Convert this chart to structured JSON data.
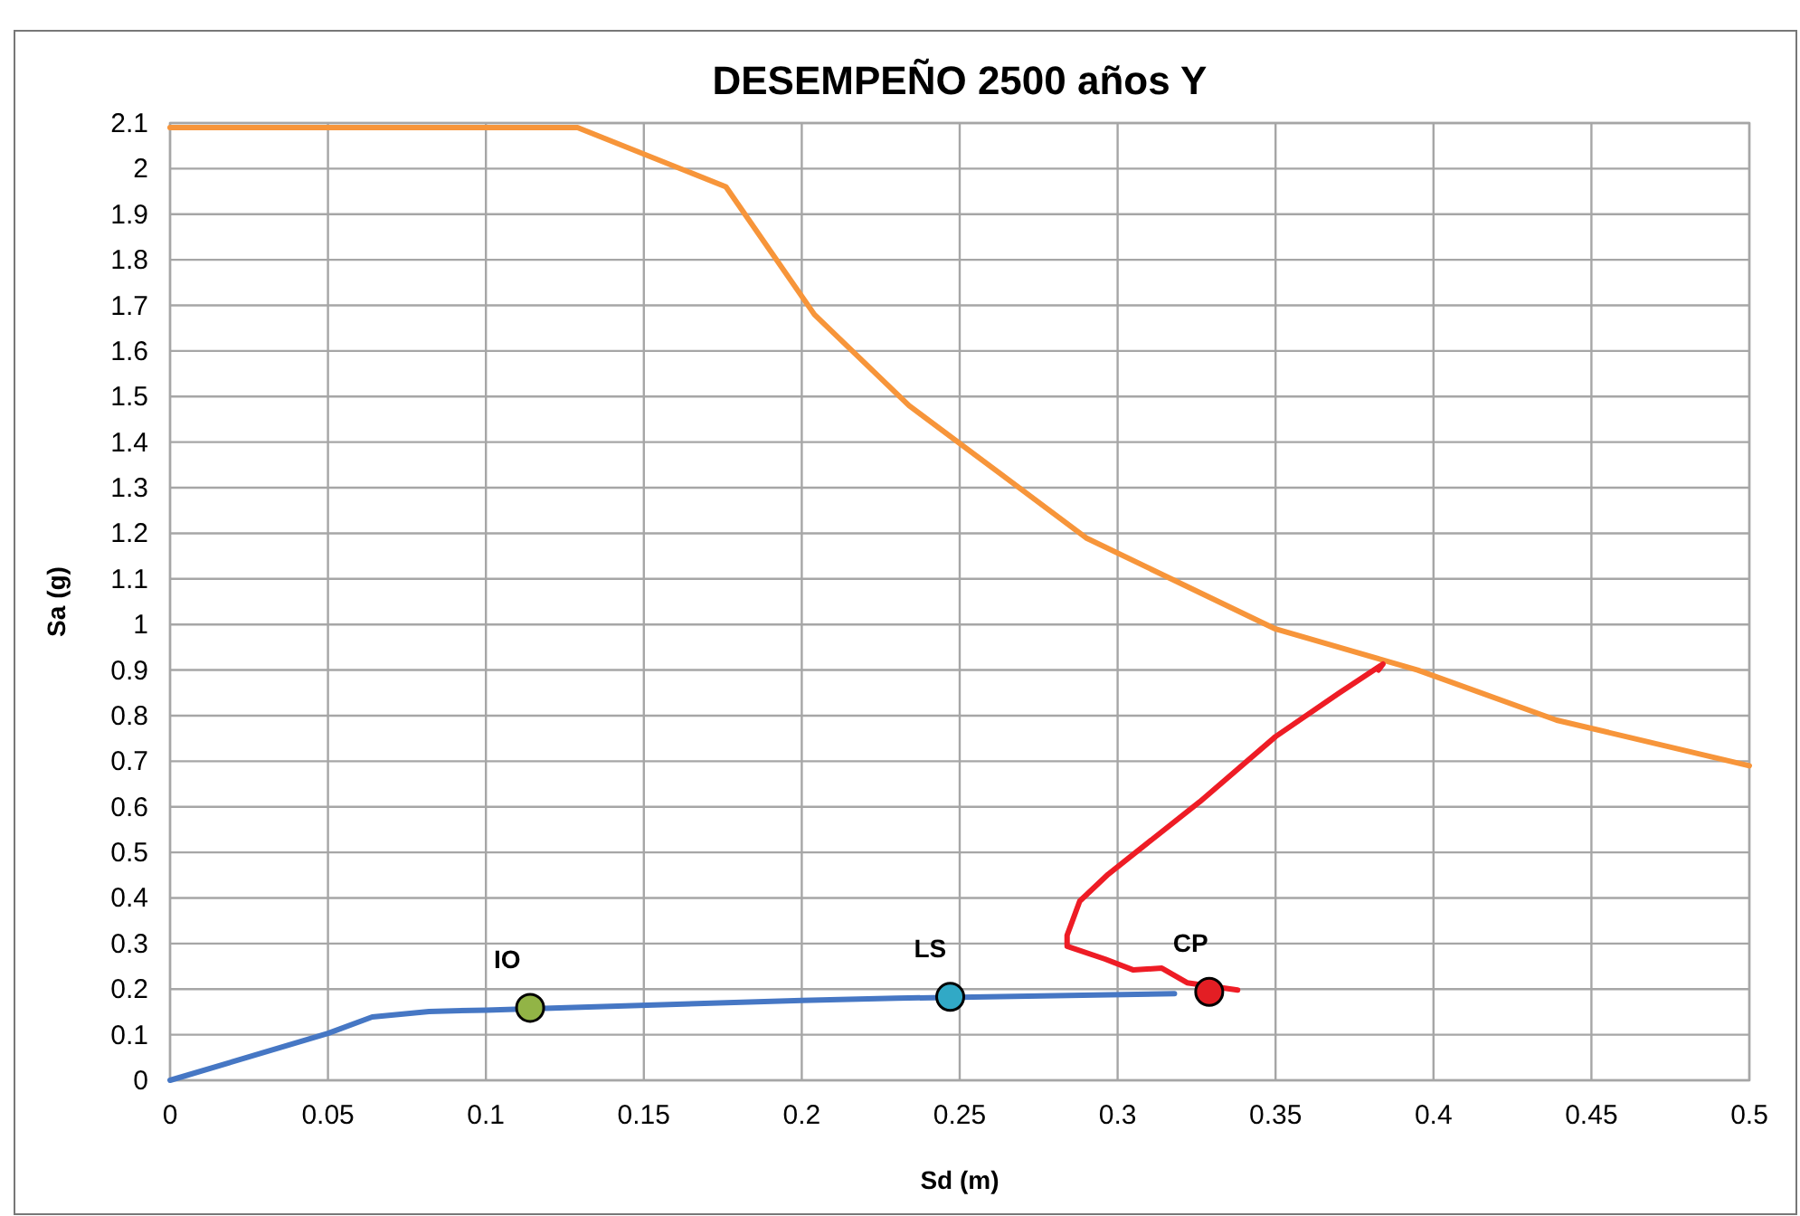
{
  "chart_data": {
    "type": "line",
    "title": "DESEMPEÑO 2500 años Y",
    "xlabel": "Sd (m)",
    "ylabel": "Sa (g)",
    "xlim": [
      0,
      0.5
    ],
    "xticks": [
      0,
      0.05,
      0.1,
      0.15,
      0.2,
      0.25,
      0.3,
      0.35,
      0.4,
      0.45,
      0.5
    ],
    "ylim": [
      0,
      2.1
    ],
    "yticks": [
      0,
      0.1,
      0.2,
      0.3,
      0.4,
      0.5,
      0.6,
      0.7,
      0.8,
      0.9,
      1,
      1.1,
      1.2,
      1.3,
      1.4,
      1.5,
      1.6,
      1.7,
      1.8,
      1.9,
      2,
      2.1
    ],
    "grid": true,
    "series": [
      {
        "color": "#f7953a",
        "x": [
          0,
          0.129,
          0.176,
          0.204,
          0.234,
          0.263,
          0.29,
          0.35,
          0.395,
          0.439,
          0.5
        ],
        "values": [
          2.09,
          2.09,
          1.96,
          1.68,
          1.48,
          1.33,
          1.19,
          0.99,
          0.9,
          0.79,
          0.69
        ]
      },
      {
        "color": "#ee1c25",
        "x": [
          0.338,
          0.322,
          0.314,
          0.305,
          0.296,
          0.284,
          0.284,
          0.288,
          0.297,
          0.326,
          0.35,
          0.37,
          0.384,
          0.3826
        ],
        "values": [
          0.198,
          0.214,
          0.246,
          0.242,
          0.266,
          0.294,
          0.318,
          0.393,
          0.452,
          0.611,
          0.754,
          0.849,
          0.913,
          0.9
        ]
      },
      {
        "color": "#4677c4",
        "x": [
          0,
          0.05,
          0.064,
          0.082,
          0.1,
          0.2,
          0.23,
          0.318
        ],
        "values": [
          0,
          0.103,
          0.139,
          0.151,
          0.154,
          0.175,
          0.18,
          0.19
        ]
      },
      {
        "type": "scatter",
        "name": "IO",
        "color": "#92b446",
        "marker": "circle",
        "x": [
          0.114
        ],
        "values": [
          0.159
        ]
      },
      {
        "type": "scatter",
        "name": "LS",
        "color": "#31a9c6",
        "marker": "circle",
        "x": [
          0.247
        ],
        "values": [
          0.183
        ]
      },
      {
        "type": "scatter",
        "name": "CP",
        "color": "#e31e24",
        "marker": "circle",
        "x": [
          0.329
        ],
        "values": [
          0.194
        ]
      }
    ]
  }
}
